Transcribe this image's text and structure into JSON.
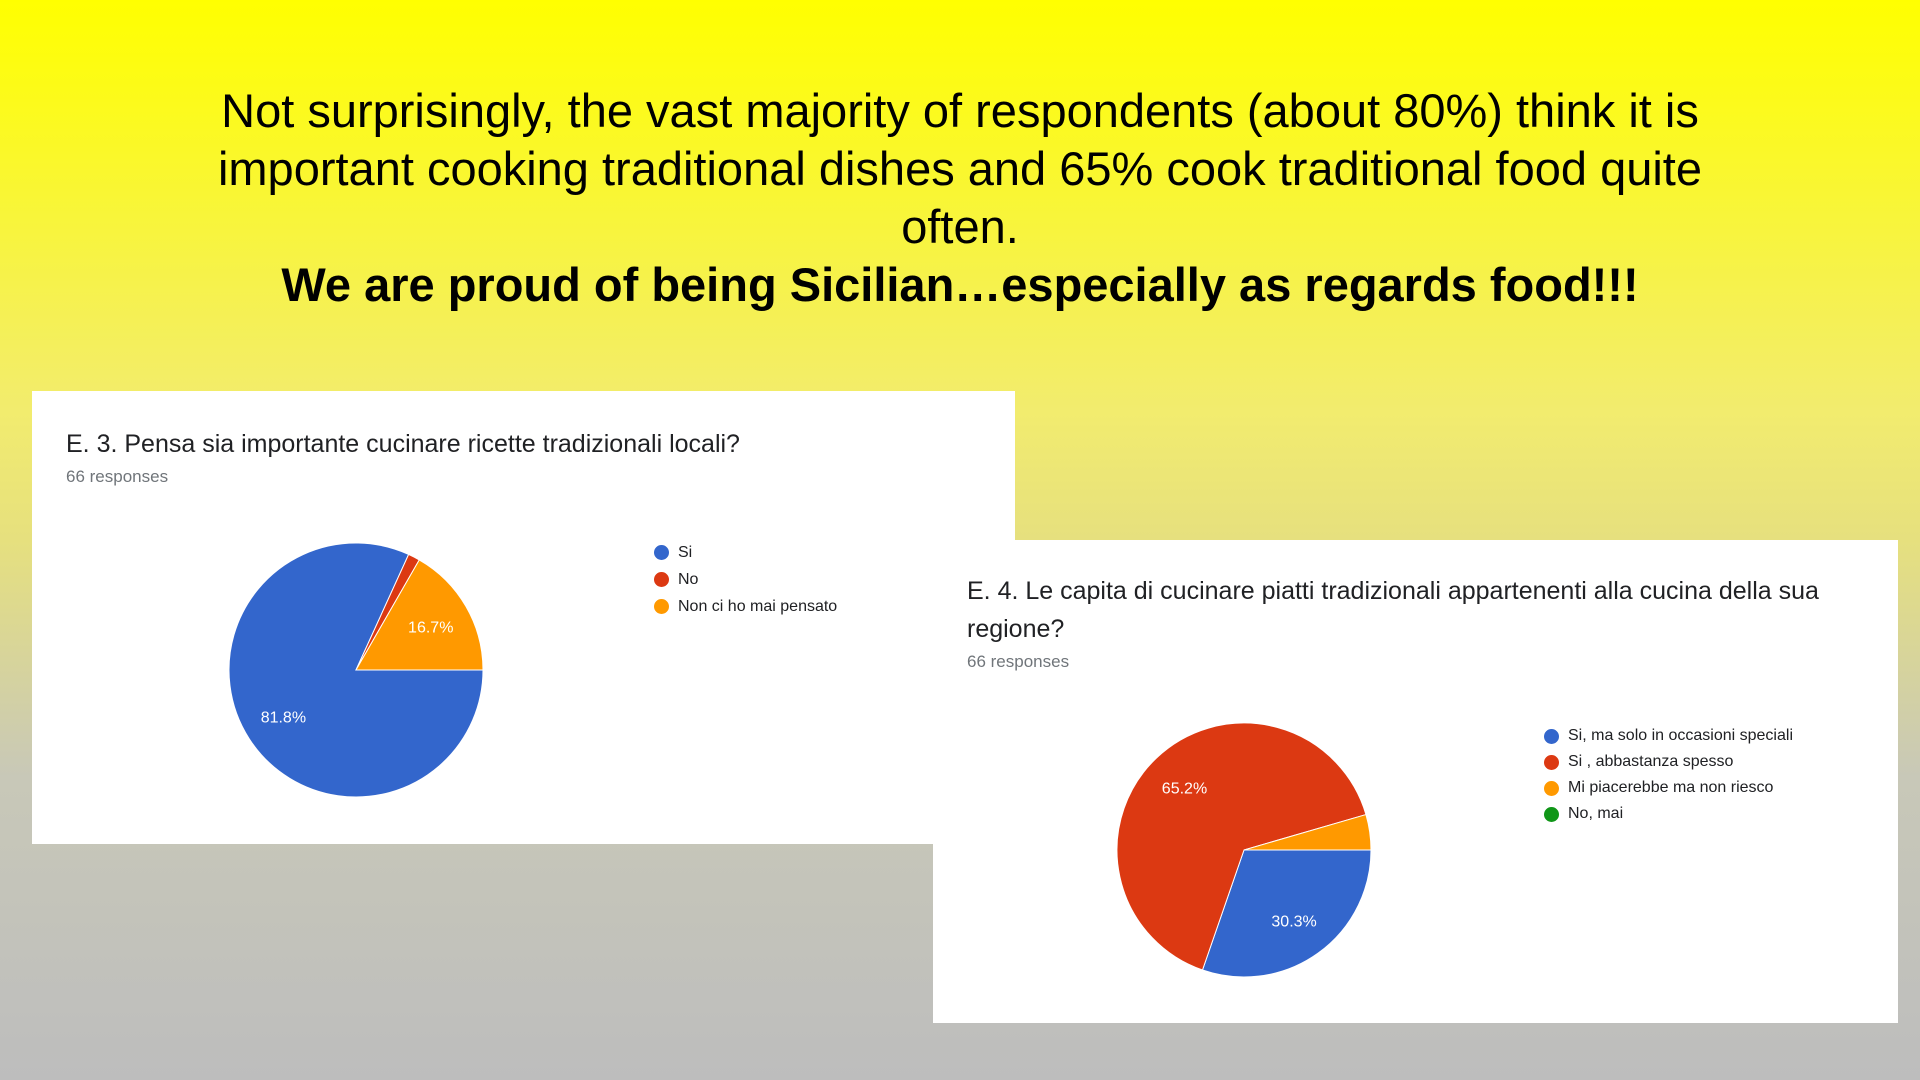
{
  "headline": {
    "line1": "Not surprisingly, the vast majority of respondents (about 80%) think it is",
    "line2": "important cooking traditional dishes and 65% cook traditional food quite",
    "line3": "often.",
    "bold": "We are proud of being Sicilian…especially as regards food!!!"
  },
  "chart_data": [
    {
      "type": "pie",
      "title": "E. 3.  Pensa sia importante cucinare ricette tradizionali locali?",
      "subtitle": "66 responses",
      "legend_position": "right",
      "slices": [
        {
          "label": "Si",
          "value": 81.8,
          "color": "#3366cc",
          "shown_label": "81.8%"
        },
        {
          "label": "No",
          "value": 1.5,
          "color": "#dc3912",
          "shown_label": ""
        },
        {
          "label": "Non ci ho mai pensato",
          "value": 16.7,
          "color": "#ff9900",
          "shown_label": "16.7%"
        }
      ]
    },
    {
      "type": "pie",
      "title": "E. 4. Le capita di cucinare piatti tradizionali appartenenti alla cucina della sua regione?",
      "subtitle": "66 responses",
      "legend_position": "right",
      "slices": [
        {
          "label": "Si, ma solo in occasioni speciali",
          "value": 30.3,
          "color": "#3366cc",
          "shown_label": "30.3%"
        },
        {
          "label": "Si , abbastanza spesso",
          "value": 65.2,
          "color": "#dc3912",
          "shown_label": "65.2%"
        },
        {
          "label": "Mi piacerebbe ma non riesco",
          "value": 4.5,
          "color": "#ff9900",
          "shown_label": ""
        },
        {
          "label": "No, mai",
          "value": 0,
          "color": "#109618",
          "shown_label": ""
        }
      ]
    }
  ]
}
